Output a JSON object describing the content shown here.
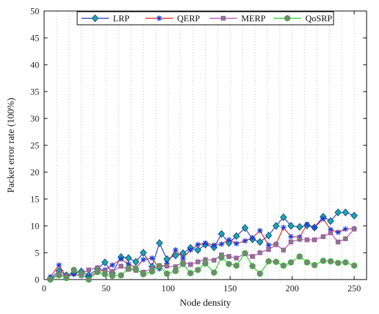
{
  "chart_data": {
    "type": "line",
    "title": "",
    "xlabel": "Node density",
    "ylabel": "Packet error rate (100%)",
    "xlim": [
      0,
      260
    ],
    "ylim": [
      0,
      50
    ],
    "xticks": [
      0,
      50,
      100,
      150,
      200,
      250
    ],
    "yticks": [
      0,
      5,
      10,
      15,
      20,
      25,
      30,
      35,
      40,
      45,
      50
    ],
    "grid": "vertical dotted",
    "legend_position": "top-center",
    "x": [
      5,
      12,
      18,
      24,
      30,
      36,
      43,
      49,
      55,
      62,
      68,
      74,
      80,
      87,
      93,
      99,
      106,
      112,
      118,
      124,
      130,
      137,
      143,
      149,
      155,
      162,
      168,
      174,
      181,
      187,
      193,
      199,
      206,
      212,
      218,
      225,
      231,
      237,
      243,
      250
    ],
    "series": [
      {
        "name": "LRP",
        "color": "#1f2fbf",
        "marker": "diamond",
        "marker_color": "#1aa5b5",
        "values": [
          0.2,
          1.6,
          0.8,
          1.2,
          1.5,
          0.8,
          2.0,
          3.2,
          1.2,
          4.2,
          4.0,
          3.3,
          5.0,
          2.4,
          6.8,
          3.8,
          4.5,
          4.9,
          5.9,
          5.5,
          6.5,
          6.0,
          8.5,
          6.8,
          8.1,
          9.6,
          7.5,
          7.0,
          8.2,
          10.0,
          11.6,
          10.0,
          9.8,
          10.1,
          9.7,
          11.7,
          10.9,
          12.5,
          12.5,
          11.9
        ]
      },
      {
        "name": "QERP",
        "color": "#ee1111",
        "marker": "star",
        "marker_color": "#1a3fd6",
        "values": [
          0.5,
          2.7,
          0.5,
          1.0,
          0.7,
          0.5,
          1.5,
          1.8,
          2.7,
          3.8,
          2.9,
          2.2,
          3.7,
          4.0,
          2.0,
          3.0,
          5.5,
          4.0,
          5.5,
          6.5,
          6.8,
          6.4,
          6.6,
          7.4,
          6.7,
          7.2,
          7.8,
          9.1,
          6.4,
          6.6,
          9.7,
          8.0,
          7.9,
          10.3,
          9.7,
          11.3,
          9.3,
          8.8,
          9.4,
          9.5
        ]
      },
      {
        "name": "MERP",
        "color": "#b044b0",
        "marker": "square",
        "marker_color": "#7f7f7f",
        "values": [
          0.1,
          1.1,
          0.6,
          1.6,
          1.2,
          1.8,
          2.2,
          1.5,
          1.5,
          2.5,
          1.9,
          1.7,
          1.4,
          2.0,
          2.6,
          2.5,
          2.4,
          3.3,
          2.8,
          3.3,
          3.7,
          3.6,
          4.6,
          4.3,
          4.0,
          4.8,
          4.3,
          5.0,
          5.6,
          6.5,
          5.5,
          7.0,
          7.5,
          7.4,
          7.4,
          8.0,
          8.7,
          7.0,
          7.6,
          9.4
        ]
      },
      {
        "name": "QoSRP",
        "color": "#22c322",
        "marker": "circle",
        "marker_color": "#7f7f7f",
        "values": [
          0.0,
          0.8,
          0.3,
          1.8,
          1.0,
          0.0,
          1.4,
          1.0,
          0.7,
          0.8,
          2.1,
          1.9,
          1.0,
          1.5,
          2.5,
          1.1,
          1.6,
          2.9,
          1.2,
          1.8,
          3.0,
          1.3,
          4.1,
          2.9,
          2.6,
          4.9,
          2.5,
          1.1,
          3.4,
          3.3,
          2.6,
          3.2,
          4.3,
          3.2,
          2.7,
          3.5,
          3.4,
          3.1,
          3.2,
          2.6
        ]
      }
    ]
  }
}
